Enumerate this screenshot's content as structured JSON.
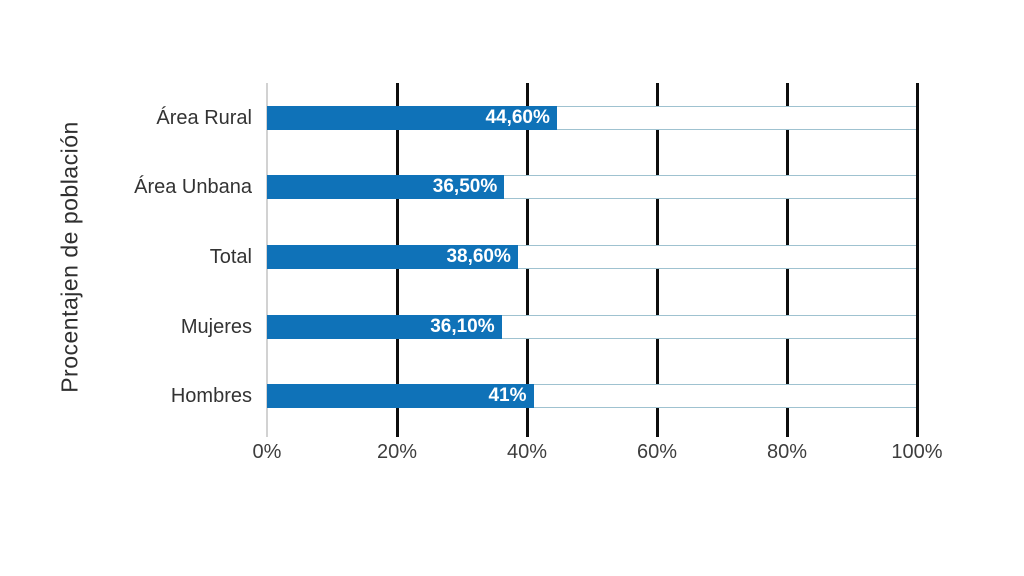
{
  "chart_data": {
    "type": "bar",
    "orientation": "horizontal",
    "title": "",
    "ylabel": "Procentajen de población",
    "xlabel": "",
    "categories": [
      "Área Rural",
      "Área Unbana",
      "Total",
      "Mujeres",
      "Hombres"
    ],
    "values": [
      44.6,
      36.5,
      38.6,
      36.1,
      41
    ],
    "value_labels": [
      "44,60%",
      "36,50%",
      "38,60%",
      "36,10%",
      "41%"
    ],
    "x_ticks": [
      "0%",
      "20%",
      "40%",
      "60%",
      "80%",
      "100%"
    ],
    "x_tick_values": [
      0,
      20,
      40,
      60,
      80,
      100
    ],
    "xlim": [
      0,
      100
    ],
    "grid": "vertical",
    "legend": "none",
    "colors": {
      "bar_fill": "#0f72b8",
      "bar_track_background": "#ffffff",
      "bar_track_border": "#9fc2d0",
      "gridline": "#0d0d0d",
      "zero_axis_line": "#d2d2d2",
      "value_label_text": "#ffffff",
      "axis_text": "#3d3d3d",
      "background": "#ffffff"
    }
  }
}
